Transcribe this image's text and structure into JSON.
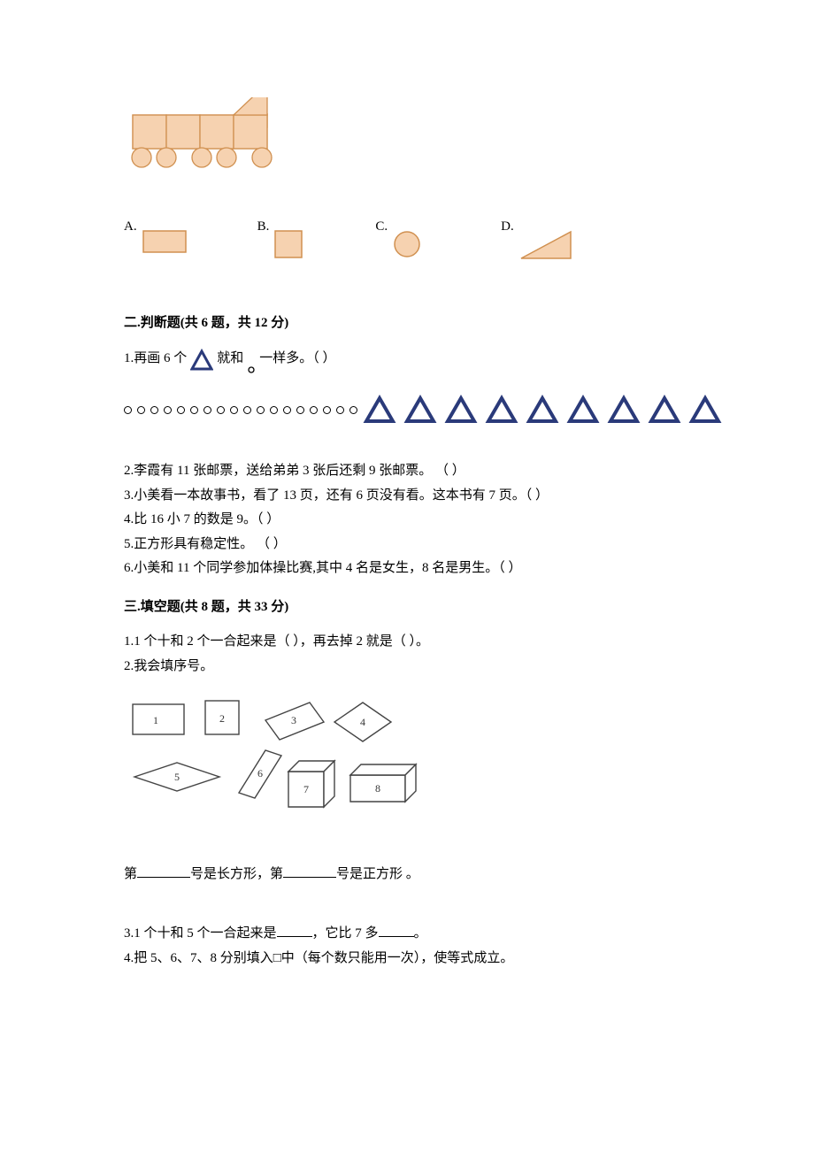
{
  "train_svg": {
    "fill": "#f6d2b0",
    "stroke": "#d09050",
    "wheel_fill": "#f6d2b0",
    "wheel_stroke": "#d09050"
  },
  "options": {
    "A": {
      "label": "A."
    },
    "B": {
      "label": "B."
    },
    "C": {
      "label": "C."
    },
    "D": {
      "label": "D."
    },
    "shape_stroke": "#d09050",
    "shape_fill": "#f6d2b0"
  },
  "section2": {
    "heading": "二.判断题(共 6 题，共 12 分)",
    "q1_a": "1.再画 6 个",
    "q1_b": "就和",
    "q1_c": "一样多。（     ）",
    "dot_count": 18,
    "tri_count": 9,
    "tri_stroke": "#2a3a7a",
    "tri_fill": "#ffffff",
    "q2": "2.李霞有 11 张邮票，送给弟弟 3 张后还剩 9 张邮票。 （     ）",
    "q3": "3.小美看一本故事书，看了 13 页，还有 6 页没有看。这本书有 7 页。（     ）",
    "q4": "4.比 16 小 7 的数是 9。（     ）",
    "q5": "5.正方形具有稳定性。        （     ）",
    "q6": "6.小美和 11 个同学参加体操比赛,其中 4 名是女生，8 名是男生。（     ）"
  },
  "section3": {
    "heading": "三.填空题(共 8 题，共 33 分)",
    "q1": "1.1 个十和 2 个一合起来是（     ），再去掉 2 就是（     ）。",
    "q2": "2.我会填序号。",
    "q2_answer_a": "第",
    "q2_answer_b": "号是长方形，第",
    "q2_answer_c": "号是正方形 。",
    "q3_a": "3.1 个十和 5 个一合起来是",
    "q3_b": "，它比 7 多",
    "q3_c": "。",
    "q4": "4.把 5、6、7、8 分别填入□中（每个数只能用一次），使等式成立。",
    "shapes": {
      "n1": "1",
      "n2": "2",
      "n3": "3",
      "n4": "4",
      "n5": "5",
      "n6": "6",
      "n7": "7",
      "n8": "8"
    }
  }
}
